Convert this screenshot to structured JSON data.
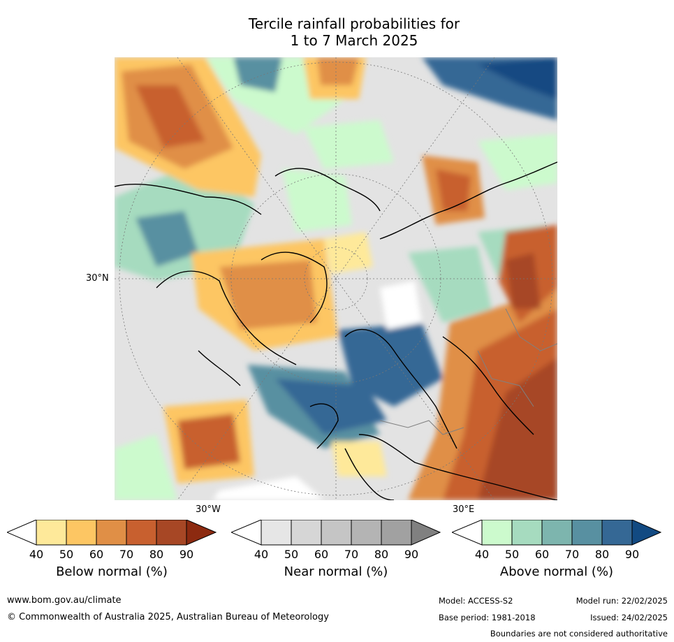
{
  "title": {
    "line1": "Tercile rainfall probabilities for",
    "line2": "1 to 7 March 2025"
  },
  "axis_labels": {
    "lat_30n": "30°N",
    "lon_30w": "30°W",
    "lon_30e": "30°E"
  },
  "colorbars": [
    {
      "label": "Below normal (%)",
      "ticks": [
        "40",
        "50",
        "60",
        "70",
        "80",
        "90"
      ],
      "colors": [
        "#ffffff",
        "#fee99a",
        "#fdc663",
        "#e08f46",
        "#c8602f",
        "#a74725",
        "#8c2a10"
      ]
    },
    {
      "label": "Near normal (%)",
      "ticks": [
        "40",
        "50",
        "60",
        "70",
        "80",
        "90"
      ],
      "colors": [
        "#ffffff",
        "#e6e6e6",
        "#d6d6d6",
        "#c5c5c5",
        "#b4b4b4",
        "#a1a1a1",
        "#808080"
      ]
    },
    {
      "label": "Above normal (%)",
      "ticks": [
        "40",
        "50",
        "60",
        "70",
        "80",
        "90"
      ],
      "colors": [
        "#ffffff",
        "#ccfacd",
        "#a6dbbf",
        "#7db5ae",
        "#5890a1",
        "#356895",
        "#124a82"
      ]
    }
  ],
  "footer": {
    "website": "www.bom.gov.au/climate",
    "copyright": "© Commonwealth of Australia 2025, Australian Bureau of Meteorology",
    "model": "Model: ACCESS-S2",
    "base_period": "Base period: 1981-2018",
    "model_run": "Model run: 22/02/2025",
    "issued": "Issued: 24/02/2025",
    "disclaimer": "Boundaries are not considered authoritative"
  }
}
